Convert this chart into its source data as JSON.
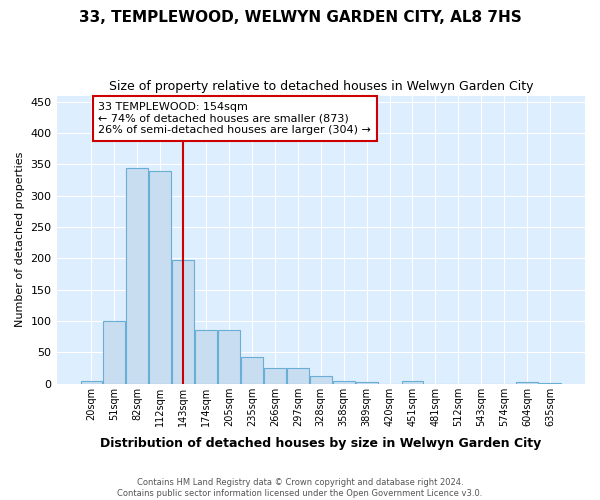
{
  "title": "33, TEMPLEWOOD, WELWYN GARDEN CITY, AL8 7HS",
  "subtitle": "Size of property relative to detached houses in Welwyn Garden City",
  "xlabel": "Distribution of detached houses by size in Welwyn Garden City",
  "ylabel": "Number of detached properties",
  "footer_line1": "Contains HM Land Registry data © Crown copyright and database right 2024.",
  "footer_line2": "Contains public sector information licensed under the Open Government Licence v3.0.",
  "categories": [
    "20sqm",
    "51sqm",
    "82sqm",
    "112sqm",
    "143sqm",
    "174sqm",
    "205sqm",
    "235sqm",
    "266sqm",
    "297sqm",
    "328sqm",
    "358sqm",
    "389sqm",
    "420sqm",
    "451sqm",
    "481sqm",
    "512sqm",
    "543sqm",
    "574sqm",
    "604sqm",
    "635sqm"
  ],
  "values": [
    5,
    100,
    345,
    340,
    197,
    85,
    85,
    43,
    25,
    25,
    12,
    5,
    3,
    0,
    5,
    0,
    0,
    0,
    0,
    2,
    1
  ],
  "bar_color": "#c8ddf0",
  "bar_edge_color": "#6aaed6",
  "plot_bg_color": "#ddeeff",
  "grid_color": "#ffffff",
  "vline_x": 4,
  "vline_color": "#cc0000",
  "annotation_line1": "33 TEMPLEWOOD: 154sqm",
  "annotation_line2": "← 74% of detached houses are smaller (873)",
  "annotation_line3": "26% of semi-detached houses are larger (304) →",
  "annotation_box_color": "#ffffff",
  "annotation_box_edge": "#cc0000",
  "ylim": [
    0,
    460
  ],
  "yticks": [
    0,
    50,
    100,
    150,
    200,
    250,
    300,
    350,
    400,
    450
  ],
  "fig_bg_color": "#ffffff"
}
